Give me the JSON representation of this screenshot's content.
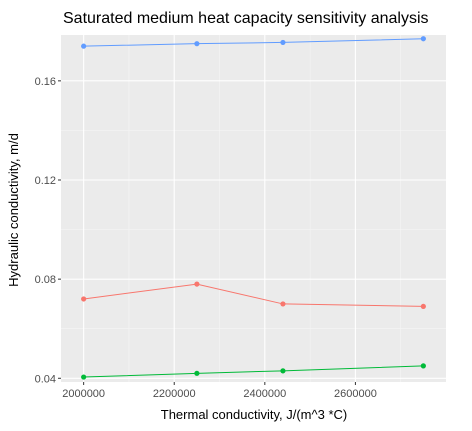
{
  "chart_data": {
    "type": "line",
    "title": "Saturated medium heat capacity sensitivity analysis",
    "xlabel": "Thermal conductivity, J/(m^3 *C)",
    "ylabel": "Hydraulic conductivity, m/d",
    "x": [
      2000000,
      2250000,
      2440000,
      2750000
    ],
    "xlim": [
      1950000,
      2800000
    ],
    "ylim": [
      0.0385,
      0.1785
    ],
    "x_ticks": [
      2000000,
      2200000,
      2400000,
      2600000
    ],
    "x_tick_labels": [
      "2000000",
      "2200000",
      "2400000",
      "2600000"
    ],
    "y_ticks": [
      0.04,
      0.08,
      0.12,
      0.16
    ],
    "y_tick_labels": [
      "0.04",
      "0.08",
      "0.12",
      "0.16"
    ],
    "grid": true,
    "series": [
      {
        "values": [
          0.174,
          0.175,
          0.1755,
          0.177
        ],
        "color": "#619CFF"
      },
      {
        "values": [
          0.072,
          0.078,
          0.07,
          0.069
        ],
        "color": "#F8766D"
      },
      {
        "values": [
          0.0405,
          0.042,
          0.043,
          0.045
        ],
        "color": "#00BA38"
      }
    ]
  }
}
